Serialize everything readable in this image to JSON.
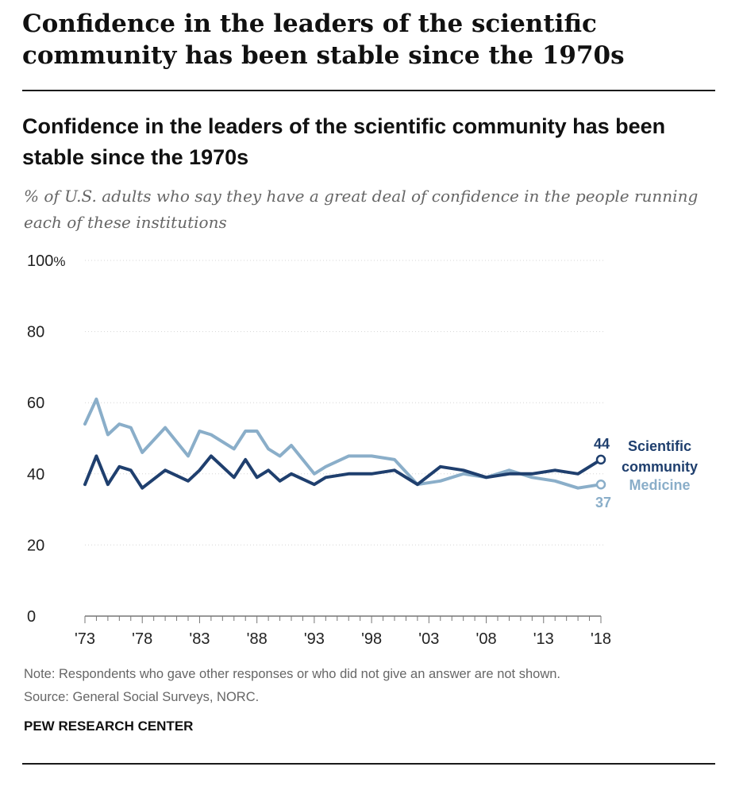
{
  "page": {
    "headline": "Confidence in the leaders of the scientific community has been stable since the 1970s",
    "note": "Note: Respondents who gave other responses or who did not give an answer are not shown.",
    "source": "Source: General Social Surveys, NORC.",
    "organization": "PEW RESEARCH CENTER"
  },
  "chart_data": {
    "type": "line",
    "title": "Confidence in the leaders of the scientific community has been stable since the 1970s",
    "subtitle": "% of U.S. adults who say they have a great deal of confidence in the people running each of these institutions",
    "xlabel": "",
    "ylabel": "",
    "xlim": [
      1973,
      2018
    ],
    "ylim": [
      0,
      100
    ],
    "y_ticks": [
      0,
      20,
      40,
      60,
      80,
      100
    ],
    "y_tick_labels": [
      "0",
      "20",
      "40",
      "60",
      "80",
      "100"
    ],
    "y_unit": "%",
    "x_ticks": [
      1973,
      1978,
      1983,
      1988,
      1993,
      1998,
      2003,
      2008,
      2013,
      2018
    ],
    "x_tick_labels": [
      "'73",
      "'78",
      "'83",
      "'88",
      "'93",
      "'98",
      "'03",
      "'08",
      "'13",
      "'18"
    ],
    "grid": "horizontal dotted",
    "series": [
      {
        "name": "Medicine",
        "color": "#8aaec9",
        "end_label": "37",
        "x": [
          1973,
          1974,
          1975,
          1976,
          1977,
          1978,
          1980,
          1982,
          1983,
          1984,
          1986,
          1987,
          1988,
          1989,
          1990,
          1991,
          1993,
          1994,
          1996,
          1998,
          2000,
          2002,
          2004,
          2006,
          2008,
          2010,
          2012,
          2014,
          2016,
          2018
        ],
        "y": [
          54,
          61,
          51,
          54,
          53,
          46,
          53,
          45,
          52,
          51,
          47,
          52,
          52,
          47,
          45,
          48,
          40,
          42,
          45,
          45,
          44,
          37,
          38,
          40,
          39,
          41,
          39,
          38,
          36,
          37
        ]
      },
      {
        "name": "Scientific community",
        "color": "#1f3f6e",
        "end_label": "44",
        "x": [
          1973,
          1974,
          1975,
          1976,
          1977,
          1978,
          1980,
          1982,
          1983,
          1984,
          1986,
          1987,
          1988,
          1989,
          1990,
          1991,
          1993,
          1994,
          1996,
          1998,
          2000,
          2002,
          2004,
          2006,
          2008,
          2010,
          2012,
          2014,
          2016,
          2018
        ],
        "y": [
          37,
          45,
          37,
          42,
          41,
          36,
          41,
          38,
          41,
          45,
          39,
          44,
          39,
          41,
          38,
          40,
          37,
          39,
          40,
          40,
          41,
          37,
          42,
          41,
          39,
          40,
          40,
          41,
          40,
          44
        ]
      }
    ]
  }
}
